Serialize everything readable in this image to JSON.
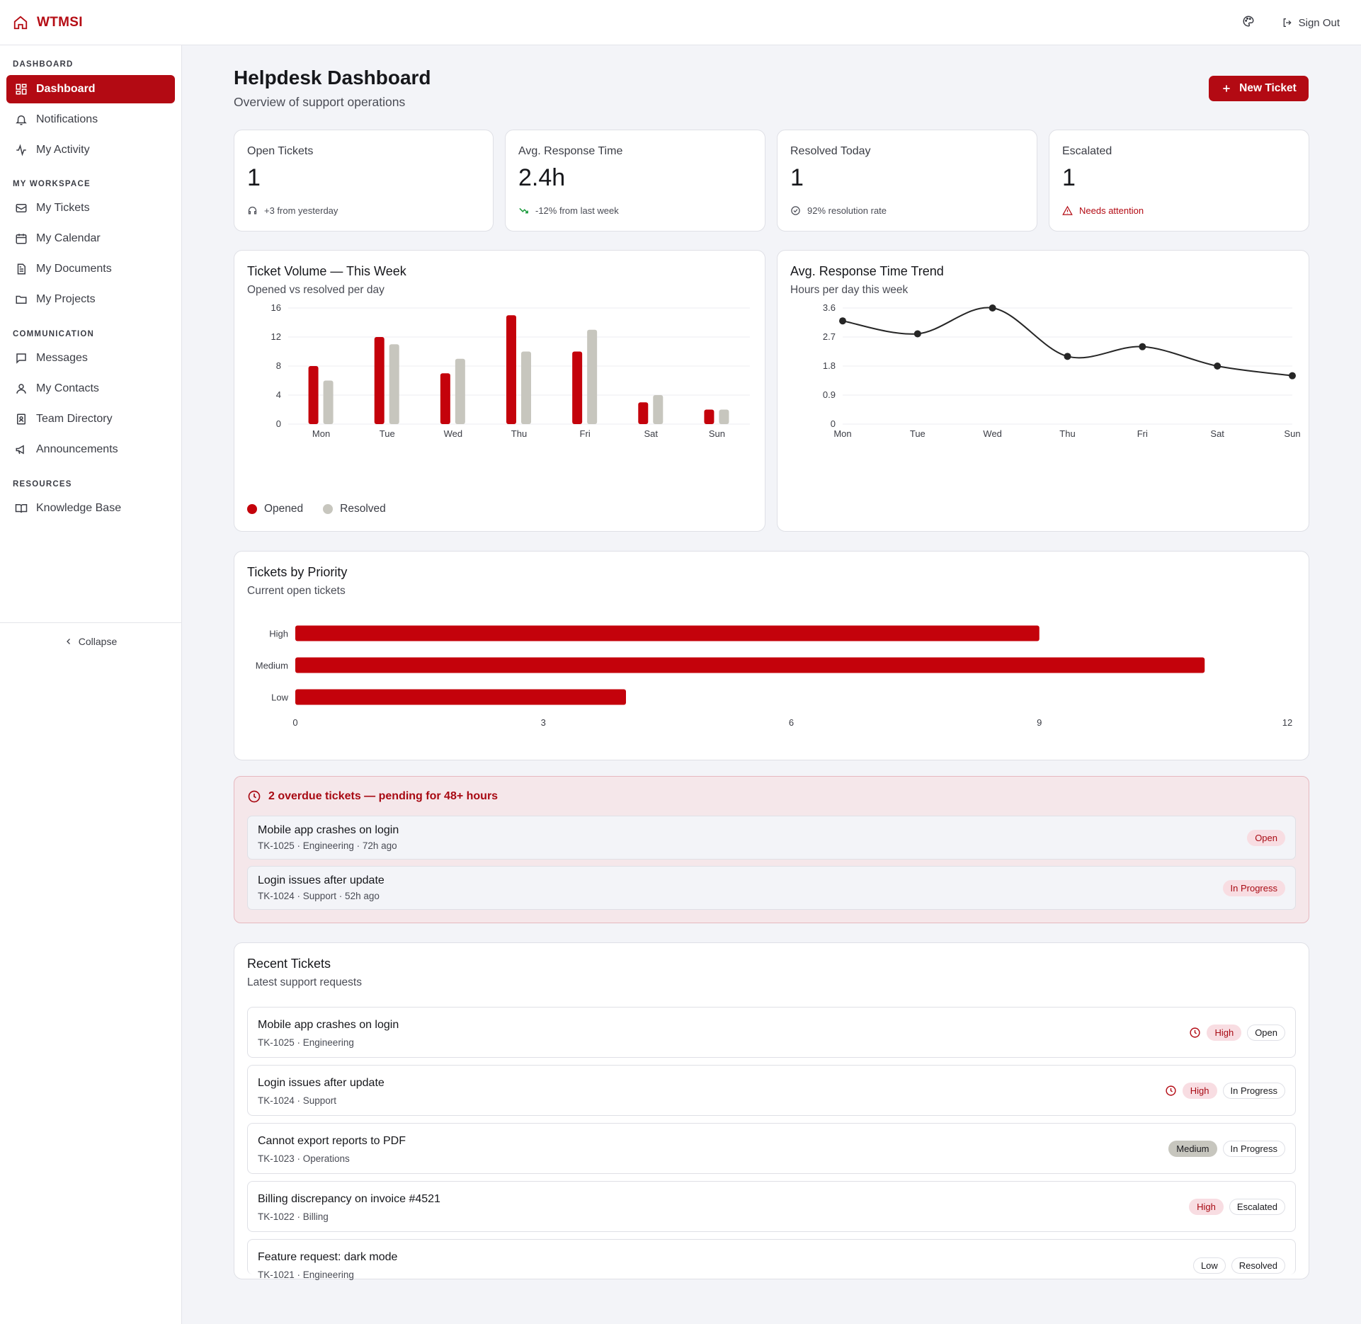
{
  "app": {
    "brand": "WTMSI",
    "sign_out": "Sign Out"
  },
  "sidebar": {
    "sections": {
      "dashboard": "DASHBOARD",
      "workspace": "MY WORKSPACE",
      "communication": "COMMUNICATION",
      "resources": "RESOURCES"
    },
    "items": {
      "dashboard": "Dashboard",
      "notifications": "Notifications",
      "activity": "My Activity",
      "tickets": "My Tickets",
      "calendar": "My Calendar",
      "documents": "My Documents",
      "projects": "My Projects",
      "messages": "Messages",
      "contacts": "My Contacts",
      "directory": "Team Directory",
      "announcements": "Announcements",
      "knowledge": "Knowledge Base"
    },
    "collapse": "Collapse"
  },
  "header": {
    "title": "Helpdesk Dashboard",
    "subtitle": "Overview of support operations",
    "new_ticket": "New Ticket"
  },
  "stats": [
    {
      "label": "Open Tickets",
      "value": "1",
      "foot": "+3 from yesterday"
    },
    {
      "label": "Avg. Response Time",
      "value": "2.4h",
      "foot": "-12% from last week"
    },
    {
      "label": "Resolved Today",
      "value": "1",
      "foot": "92% resolution rate"
    },
    {
      "label": "Escalated",
      "value": "1",
      "foot": "Needs attention"
    }
  ],
  "colors": {
    "accent": "#c4020b",
    "secondary": "#c7c6be",
    "line": "#262626"
  },
  "chart_data": [
    {
      "type": "bar",
      "title": "Ticket Volume — This Week",
      "subtitle": "Opened vs resolved per day",
      "categories": [
        "Mon",
        "Tue",
        "Wed",
        "Thu",
        "Fri",
        "Sat",
        "Sun"
      ],
      "series": [
        {
          "name": "Opened",
          "values": [
            8,
            12,
            7,
            15,
            10,
            3,
            2
          ]
        },
        {
          "name": "Resolved",
          "values": [
            6,
            11,
            9,
            10,
            13,
            4,
            2
          ]
        }
      ],
      "yticks": [
        "0",
        "4",
        "8",
        "12",
        "16"
      ],
      "ylim": [
        0,
        16
      ],
      "grid": true,
      "legend": "bottom-left"
    },
    {
      "type": "line",
      "title": "Avg. Response Time Trend",
      "subtitle": "Hours per day this week",
      "categories": [
        "Mon",
        "Tue",
        "Wed",
        "Thu",
        "Fri",
        "Sat",
        "Sun"
      ],
      "values": [
        3.2,
        2.8,
        3.6,
        2.1,
        2.4,
        1.8,
        1.5
      ],
      "yticks": [
        "0",
        "0.9",
        "1.8",
        "2.7",
        "3.6"
      ],
      "ylim": [
        0,
        3.6
      ],
      "grid": true,
      "smooth": true
    },
    {
      "type": "bar",
      "orientation": "horizontal",
      "title": "Tickets by Priority",
      "subtitle": "Current open tickets",
      "categories": [
        "High",
        "Medium",
        "Low"
      ],
      "values": [
        9,
        11,
        4
      ],
      "xticks": [
        "0",
        "3",
        "6",
        "9",
        "12"
      ],
      "xlim": [
        0,
        12
      ]
    }
  ],
  "overdue": {
    "title": "2 overdue tickets — pending for 48+ hours",
    "items": [
      {
        "title": "Mobile app crashes on login",
        "meta": "TK-1025 · Engineering · 72h ago",
        "status": "Open"
      },
      {
        "title": "Login issues after update",
        "meta": "TK-1024 · Support · 52h ago",
        "status": "In Progress"
      }
    ]
  },
  "recent": {
    "title": "Recent Tickets",
    "subtitle": "Latest support requests",
    "items": [
      {
        "title": "Mobile app crashes on login",
        "meta": "TK-1025 · Engineering",
        "priority": "High",
        "status": "Open",
        "overdue": true
      },
      {
        "title": "Login issues after update",
        "meta": "TK-1024 · Support",
        "priority": "High",
        "status": "In Progress",
        "overdue": true
      },
      {
        "title": "Cannot export reports to PDF",
        "meta": "TK-1023 · Operations",
        "priority": "Medium",
        "status": "In Progress",
        "overdue": false
      },
      {
        "title": "Billing discrepancy on invoice #4521",
        "meta": "TK-1022 · Billing",
        "priority": "High",
        "status": "Escalated",
        "overdue": false
      },
      {
        "title": "Feature request: dark mode",
        "meta": "TK-1021 · Engineering",
        "priority": "Low",
        "status": "Resolved",
        "overdue": false
      }
    ]
  }
}
